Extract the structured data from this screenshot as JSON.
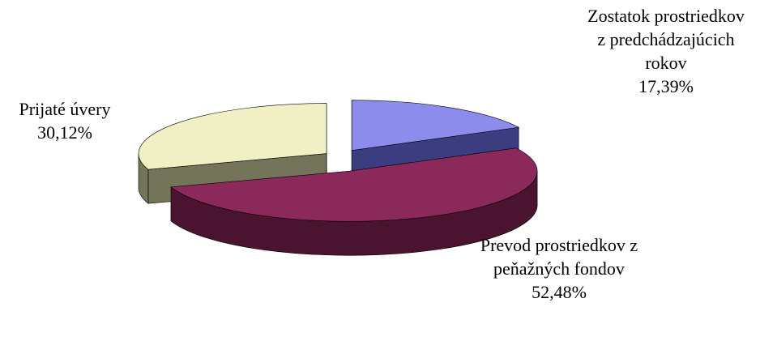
{
  "chart_data": {
    "type": "pie",
    "categories": [
      "Zostatok prostriedkov z predchádzajúcich rokov",
      "Prevod prostriedkov z peňažných fondov",
      "Prijaté úvery"
    ],
    "values": [
      17.39,
      52.48,
      30.12
    ],
    "value_labels": [
      "17,39%",
      "52,48%",
      "30,12%"
    ],
    "colors": [
      "#8c8cec",
      "#8b2a5a",
      "#f0f0c4"
    ],
    "side_colors": [
      "#3c3c80",
      "#4a1430",
      "#74745a"
    ]
  }
}
